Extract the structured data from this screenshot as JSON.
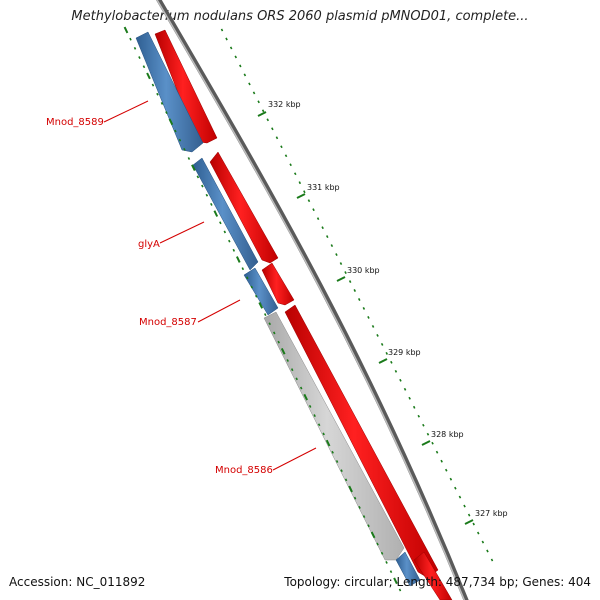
{
  "header": {
    "title": "Methylobacterium nodulans ORS 2060 plasmid pMNOD01, complete..."
  },
  "footer": {
    "accession": "Accession: NC_011892",
    "summary": "Topology: circular; Length: 487,734 bp; Genes: 404"
  },
  "ticks": [
    {
      "label": "332 kbp"
    },
    {
      "label": "331 kbp"
    },
    {
      "label": "330 kbp"
    },
    {
      "label": "329 kbp"
    },
    {
      "label": "328 kbp"
    },
    {
      "label": "327 kbp"
    }
  ],
  "genes": [
    {
      "label": "Mnod_8589"
    },
    {
      "label": "glyA"
    },
    {
      "label": "Mnod_8587"
    },
    {
      "label": "Mnod_8586"
    }
  ],
  "colors": {
    "backbone": "#777777",
    "forward_feature": "#ff0000",
    "reverse_feature": "#4a80b8",
    "other_feature": "#c8c8c8",
    "tick": "#1a7a1a",
    "gene_label": "#d40000"
  }
}
